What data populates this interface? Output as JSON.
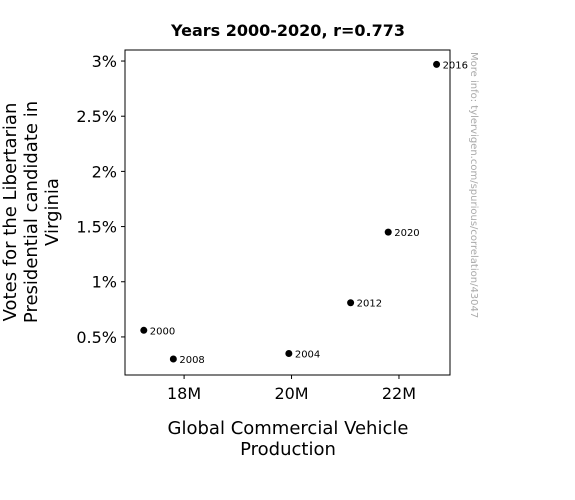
{
  "chart_data": {
    "type": "scatter",
    "title": "Years 2000-2020, r=0.773",
    "xlabel": [
      "Global Commercial Vehicle",
      "Production"
    ],
    "ylabel": [
      "Votes for the Libertarian",
      "Presidential candidate in",
      "Virginia"
    ],
    "xlim": [
      16900000,
      22950000
    ],
    "ylim": [
      0.155,
      3.1
    ],
    "x_ticks": [
      {
        "value": 18000000,
        "label": "18M"
      },
      {
        "value": 20000000,
        "label": "20M"
      },
      {
        "value": 22000000,
        "label": "22M"
      }
    ],
    "y_ticks": [
      {
        "value": 0.5,
        "label": "0.5%"
      },
      {
        "value": 1.0,
        "label": "1%"
      },
      {
        "value": 1.5,
        "label": "1.5%"
      },
      {
        "value": 2.0,
        "label": "2%"
      },
      {
        "value": 2.5,
        "label": "2.5%"
      },
      {
        "value": 3.0,
        "label": "3%"
      }
    ],
    "points": [
      {
        "label": "2000",
        "x": 17250000,
        "y": 0.56
      },
      {
        "label": "2004",
        "x": 19950000,
        "y": 0.35
      },
      {
        "label": "2008",
        "x": 17800000,
        "y": 0.3
      },
      {
        "label": "2012",
        "x": 21100000,
        "y": 0.81
      },
      {
        "label": "2016",
        "x": 22700000,
        "y": 2.97
      },
      {
        "label": "2020",
        "x": 21800000,
        "y": 1.45
      }
    ],
    "grid": false,
    "marker_color": "#000000",
    "watermark": "More info: tylervigen.com/spurious/correlation/43047"
  }
}
